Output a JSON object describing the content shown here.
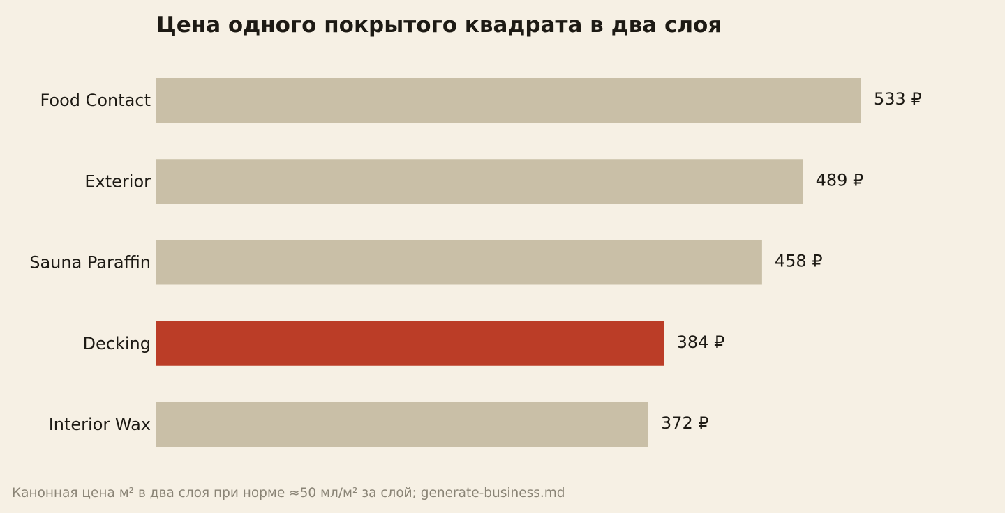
{
  "chart_data": {
    "type": "bar",
    "orientation": "horizontal",
    "title": "Цена одного покрытого квадрата в два слоя",
    "categories": [
      "Food Contact",
      "Exterior",
      "Sauna Paraffin",
      "Decking",
      "Interior Wax"
    ],
    "values": [
      533,
      489,
      458,
      384,
      372
    ],
    "value_labels": [
      "533 ₽",
      "489 ₽",
      "458 ₽",
      "384 ₽",
      "372 ₽"
    ],
    "highlight_category": "Decking",
    "xlim": [
      0,
      533
    ],
    "grid": false,
    "footnote": "Канонная цена м² в два слоя при норме ≈50 мл/м² за слой; generate-business.md",
    "colors": {
      "background": "#f6f0e4",
      "bar": "#c9bfa7",
      "highlight": "#bb3d27",
      "text": "#1d1a14",
      "footnote": "#8a8476"
    }
  }
}
